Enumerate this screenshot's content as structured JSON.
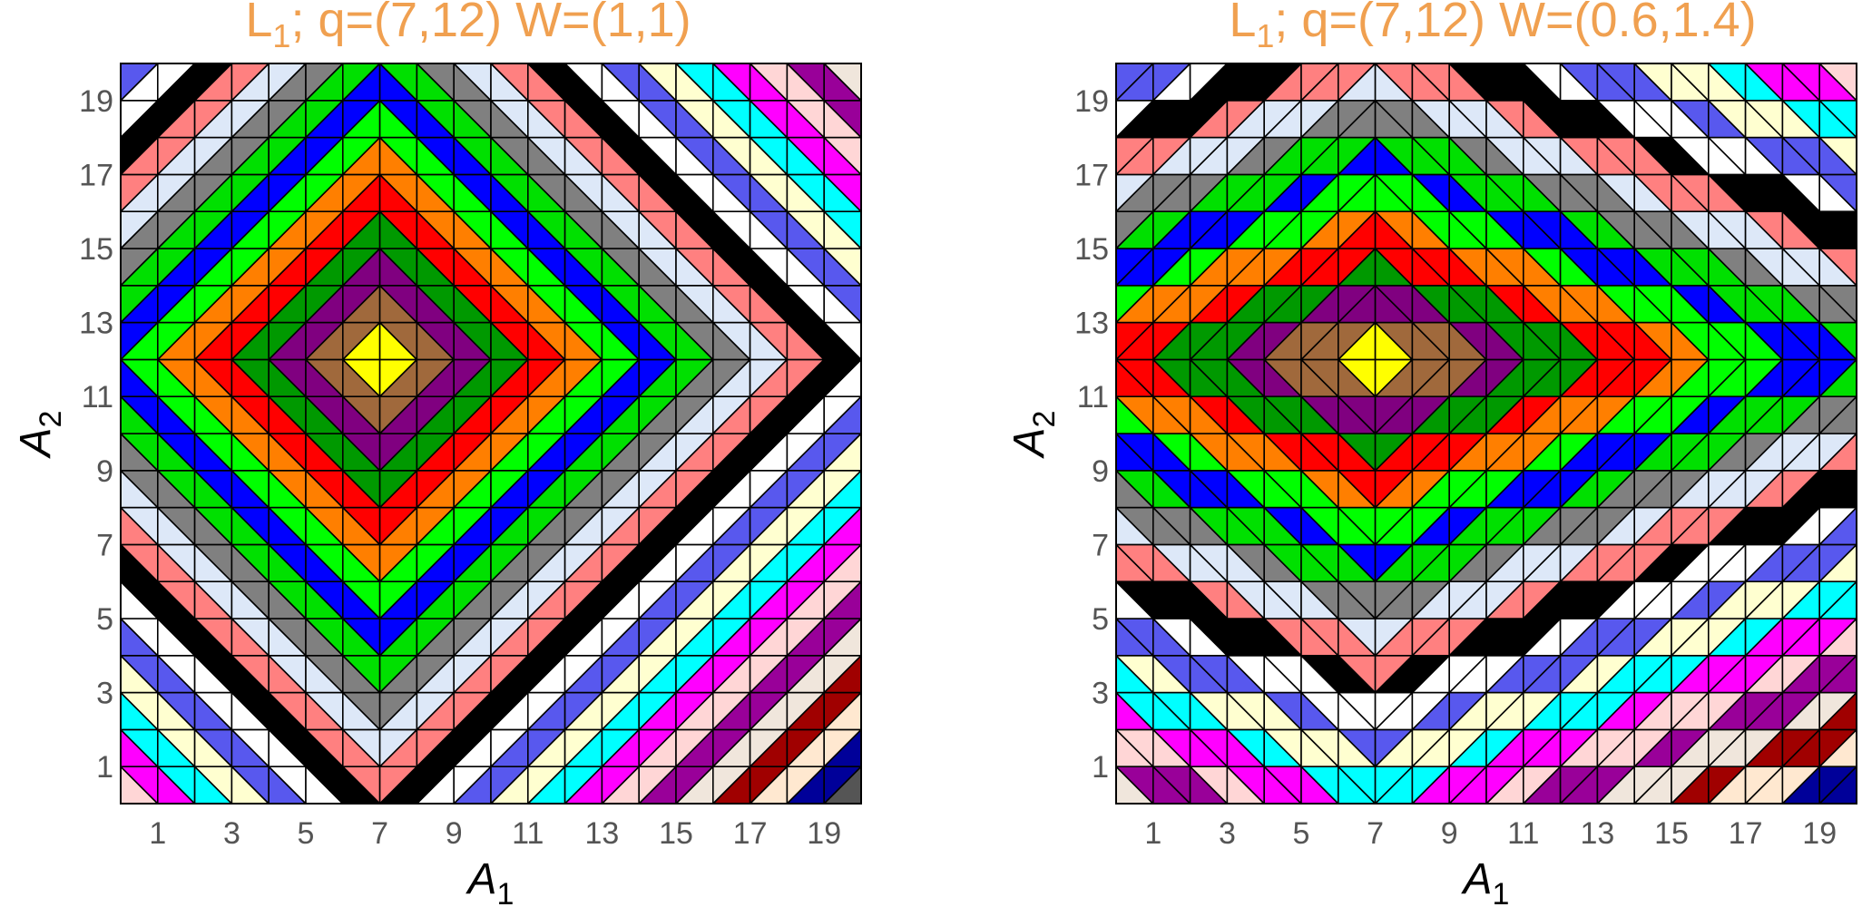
{
  "panels": [
    {
      "id": "left",
      "title_main": "L",
      "title_sub": "1",
      "title_rest": "; q=(7,12) W=(1,1)",
      "norm": "L1",
      "q": [
        7,
        12
      ],
      "W": [
        1,
        1
      ],
      "x_ticks": [
        "1",
        "3",
        "5",
        "7",
        "9",
        "11",
        "13",
        "15",
        "17",
        "19"
      ],
      "y_ticks": [
        "1",
        "3",
        "5",
        "7",
        "9",
        "11",
        "13",
        "15",
        "17",
        "19"
      ],
      "xlabel_main": "A",
      "xlabel_sub": "1",
      "ylabel_main": "A",
      "ylabel_sub": "2"
    },
    {
      "id": "right",
      "title_main": "L",
      "title_sub": "1",
      "title_rest": "; q=(7,12) W=(0.6,1.4)",
      "norm": "L1",
      "q": [
        7,
        12
      ],
      "W": [
        0.6,
        1.4
      ],
      "x_ticks": [
        "1",
        "3",
        "5",
        "7",
        "9",
        "11",
        "13",
        "15",
        "17",
        "19"
      ],
      "y_ticks": [
        "1",
        "3",
        "5",
        "7",
        "9",
        "11",
        "13",
        "15",
        "17",
        "19"
      ],
      "xlabel_main": "A",
      "xlabel_sub": "1",
      "ylabel_main": "A",
      "ylabel_sub": "2"
    }
  ],
  "grid": {
    "x_range": [
      0,
      20
    ],
    "y_range": [
      0,
      20
    ],
    "cells_per_side": 20
  },
  "palette": [
    "#ffff00",
    "#a0693c",
    "#800080",
    "#009900",
    "#ff0000",
    "#ff7f00",
    "#00ff00",
    "#0000ff",
    "#00e000",
    "#808080",
    "#dde8f8",
    "#ff8080",
    "#000000",
    "#ffffff",
    "#5858ee",
    "#ffffd0",
    "#00ffff",
    "#ff00ff",
    "#ffd6d6",
    "#990099",
    "#f0e6dc",
    "#a00000",
    "#ffe8d0",
    "#000099",
    "#555555",
    "#ff8080",
    "#dde8f8",
    "#5858ee",
    "#ffffd0"
  ],
  "band_width": 1,
  "black_band_index": 12
}
